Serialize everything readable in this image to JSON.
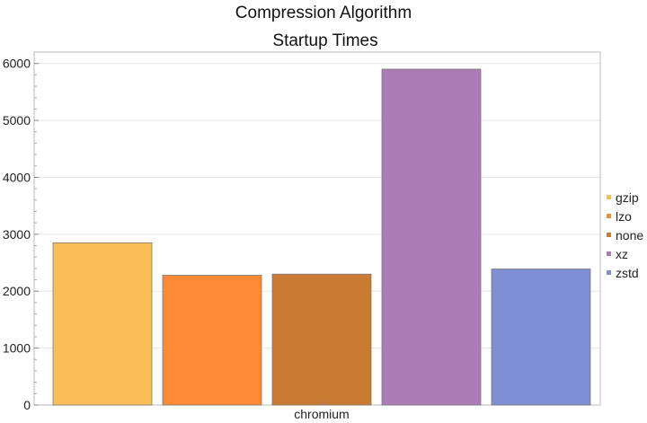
{
  "chart_data": {
    "type": "bar",
    "title_lines": [
      "Compression Algorithm",
      "Startup Times"
    ],
    "categories": [
      "chromium"
    ],
    "series": [
      {
        "name": "gzip",
        "values": [
          2850
        ],
        "color": "#F9BE56"
      },
      {
        "name": "lzo",
        "values": [
          2280
        ],
        "color": "#FD8B36"
      },
      {
        "name": "none",
        "values": [
          2300
        ],
        "color": "#C97A33"
      },
      {
        "name": "xz",
        "values": [
          5900
        ],
        "color": "#AC7CB7"
      },
      {
        "name": "zstd",
        "values": [
          2390
        ],
        "color": "#7E8FD4"
      }
    ],
    "xlabel": "",
    "ylabel": "",
    "ylim": [
      0,
      6200
    ],
    "yticks": [
      "0",
      "1000",
      "2000",
      "3000",
      "4000",
      "5000",
      "6000"
    ],
    "grid": true,
    "legend_position": "right"
  }
}
